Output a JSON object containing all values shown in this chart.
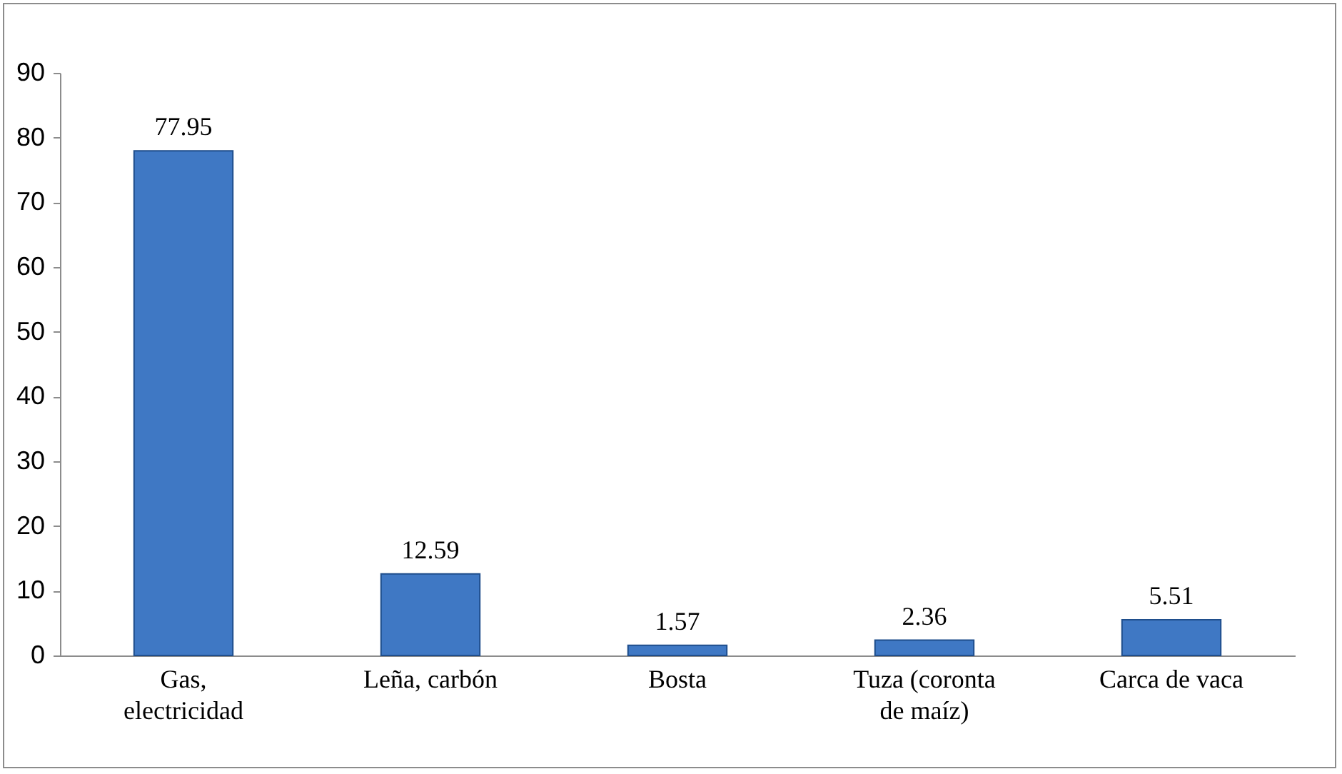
{
  "chart_data": {
    "type": "bar",
    "categories": [
      "Gas, electricidad",
      "Leña, carbón",
      "Bosta",
      "Tuza (coronta de maíz)",
      "Carca de vaca"
    ],
    "values": [
      77.95,
      12.59,
      1.57,
      2.36,
      5.51
    ],
    "color": "#3f78c4",
    "ylim": [
      0,
      90
    ],
    "yticks": [
      0,
      10,
      20,
      30,
      40,
      50,
      60,
      70,
      80,
      90
    ],
    "grid": false,
    "data_labels": true
  }
}
